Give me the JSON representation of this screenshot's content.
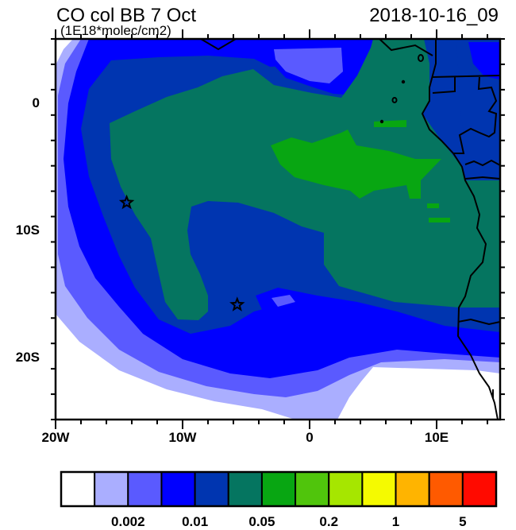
{
  "title": {
    "left": "CO col BB 7 Oct",
    "units": "(1E18*molec/cm2)",
    "right": "2018-10-16_09"
  },
  "chart_data": {
    "type": "heatmap",
    "projection": "lat-lon",
    "lon_range": [
      -20,
      15
    ],
    "lat_range": [
      -25,
      5
    ],
    "x_ticks": [
      {
        "value": -20,
        "label": "20W"
      },
      {
        "value": -10,
        "label": "10W"
      },
      {
        "value": 0,
        "label": "0"
      },
      {
        "value": 10,
        "label": "10E"
      }
    ],
    "y_ticks": [
      {
        "value": 0,
        "label": "0"
      },
      {
        "value": -10,
        "label": "10S"
      },
      {
        "value": -20,
        "label": "20S"
      }
    ],
    "minor_tick_step_deg": 2,
    "colorbar": {
      "colors": [
        "#FFFFFF",
        "#AAAEFF",
        "#5A5AFF",
        "#0000FF",
        "#0035B0",
        "#057560",
        "#08A612",
        "#50C50C",
        "#A6E600",
        "#F5FA00",
        "#FFB400",
        "#FF5A00",
        "#FF0A00"
      ],
      "labels": [
        {
          "boundary": 2,
          "label": "0.002"
        },
        {
          "boundary": 4,
          "label": "0.01"
        },
        {
          "boundary": 6,
          "label": "0.05"
        },
        {
          "boundary": 8,
          "label": "0.2"
        },
        {
          "boundary": 10,
          "label": "1"
        },
        {
          "boundary": 12,
          "label": "5"
        }
      ]
    },
    "markers": [
      {
        "symbol": "star",
        "lon": -14.4,
        "lat": -7.9
      },
      {
        "symbol": "star",
        "lon": -5.7,
        "lat": -15.95
      }
    ]
  }
}
